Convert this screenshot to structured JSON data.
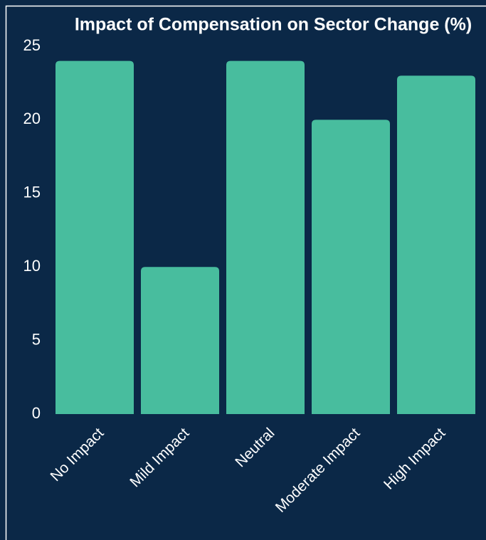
{
  "chart_data": {
    "type": "bar",
    "title": "Impact of Compensation on Sector Change (%)",
    "categories": [
      "No Impact",
      "Mild Impact",
      "Neutral",
      "Moderate Impact",
      "High Impact"
    ],
    "values": [
      24,
      10,
      24,
      20,
      23
    ],
    "color": "#48bd9e",
    "ylim": [
      0,
      25
    ],
    "yticks": [
      0,
      5,
      10,
      15,
      20,
      25
    ],
    "grid": false
  }
}
